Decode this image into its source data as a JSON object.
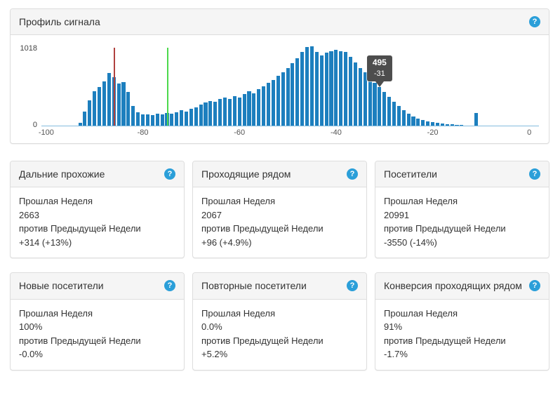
{
  "signal_panel": {
    "title": "Профиль сигнала"
  },
  "help_icon": {
    "glyph": "?"
  },
  "chart_data": {
    "type": "bar",
    "title": "Профиль сигнала",
    "xlabel": "",
    "ylabel": "",
    "ylim": [
      0,
      1018
    ],
    "y_axis_labels": {
      "top": "1018",
      "bottom": "0"
    },
    "x_ticks": [
      -100,
      -80,
      -60,
      -40,
      -20,
      0
    ],
    "x_range": [
      -101,
      2
    ],
    "bar_color": "#1d7fbe",
    "grid": false,
    "threshold_lines": [
      {
        "name": "red-threshold",
        "x": -86,
        "color": "#b0413e"
      },
      {
        "name": "green-threshold",
        "x": -75,
        "color": "#4cd94c"
      }
    ],
    "marker": {
      "x": -31,
      "value_label": "495",
      "x_label": "-31"
    },
    "x": [
      -93,
      -92,
      -91,
      -90,
      -89,
      -88,
      -87,
      -86,
      -85,
      -84,
      -83,
      -82,
      -81,
      -80,
      -79,
      -78,
      -77,
      -76,
      -75,
      -74,
      -73,
      -72,
      -71,
      -70,
      -69,
      -68,
      -67,
      -66,
      -65,
      -64,
      -63,
      -62,
      -61,
      -60,
      -59,
      -58,
      -57,
      -56,
      -55,
      -54,
      -53,
      -52,
      -51,
      -50,
      -49,
      -48,
      -47,
      -46,
      -45,
      -44,
      -43,
      -42,
      -41,
      -40,
      -39,
      -38,
      -37,
      -36,
      -35,
      -34,
      -33,
      -32,
      -31,
      -30,
      -29,
      -28,
      -27,
      -26,
      -25,
      -24,
      -23,
      -22,
      -21,
      -20,
      -19,
      -18,
      -17,
      -16,
      -15,
      -14,
      -11
    ],
    "values": [
      40,
      185,
      330,
      440,
      500,
      570,
      680,
      620,
      545,
      560,
      430,
      250,
      175,
      150,
      142,
      136,
      152,
      146,
      162,
      152,
      172,
      200,
      185,
      215,
      240,
      270,
      300,
      320,
      310,
      340,
      360,
      345,
      380,
      365,
      410,
      440,
      420,
      470,
      510,
      550,
      590,
      640,
      690,
      740,
      800,
      870,
      950,
      1010,
      1018,
      950,
      905,
      935,
      955,
      975,
      960,
      945,
      885,
      810,
      745,
      685,
      615,
      555,
      495,
      430,
      370,
      305,
      250,
      200,
      158,
      120,
      92,
      70,
      54,
      44,
      36,
      29,
      23,
      18,
      14,
      10,
      160
    ]
  },
  "labels": {
    "period": "Прошлая Неделя",
    "versus": "против Предыдущей Недели"
  },
  "cards": [
    {
      "title": "Дальние прохожие",
      "value": "2663",
      "delta": "+314 (+13%)"
    },
    {
      "title": "Проходящие рядом",
      "value": "2067",
      "delta": "+96 (+4.9%)"
    },
    {
      "title": "Посетители",
      "value": "20991",
      "delta": "-3550 (-14%)"
    },
    {
      "title": "Новые посетители",
      "value": "100%",
      "delta": "-0.0%"
    },
    {
      "title": "Повторные посетители",
      "value": "0.0%",
      "delta": "+5.2%"
    },
    {
      "title": "Конверсия проходящих рядом",
      "value": "91%",
      "delta": "-1.7%"
    }
  ]
}
